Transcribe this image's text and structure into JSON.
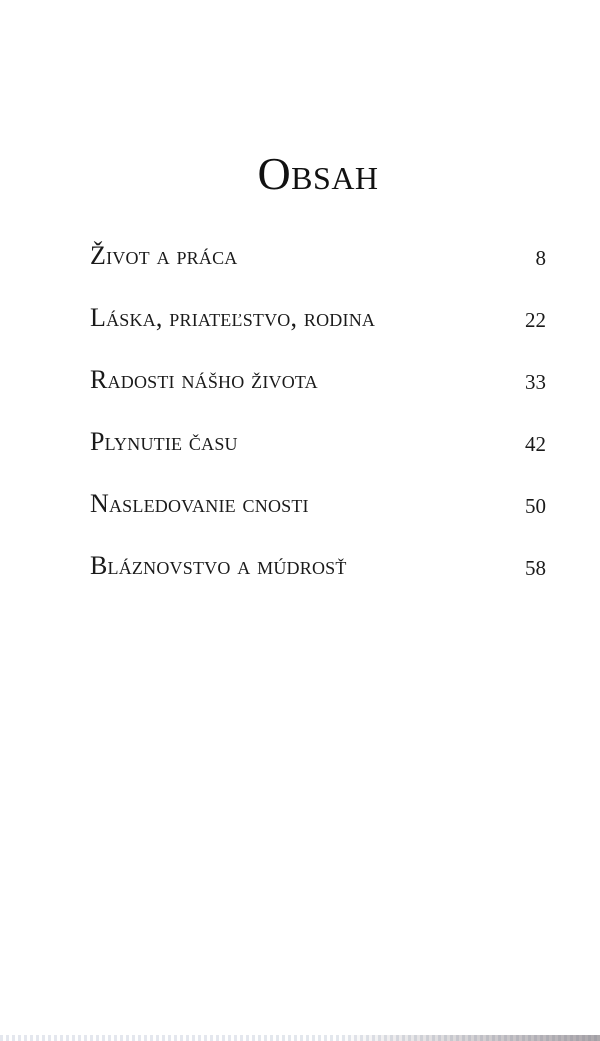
{
  "title": "Obsah",
  "entries": [
    {
      "label": "Život a práca",
      "page": "8"
    },
    {
      "label": "Láska, priateľstvo, rodina",
      "page": "22"
    },
    {
      "label": "Radosti nášho života",
      "page": "33"
    },
    {
      "label": "Plynutie času",
      "page": "42"
    },
    {
      "label": "Nasledovanie cnosti",
      "page": "50"
    },
    {
      "label": "Bláznovstvo a múdrosť",
      "page": "58"
    }
  ]
}
